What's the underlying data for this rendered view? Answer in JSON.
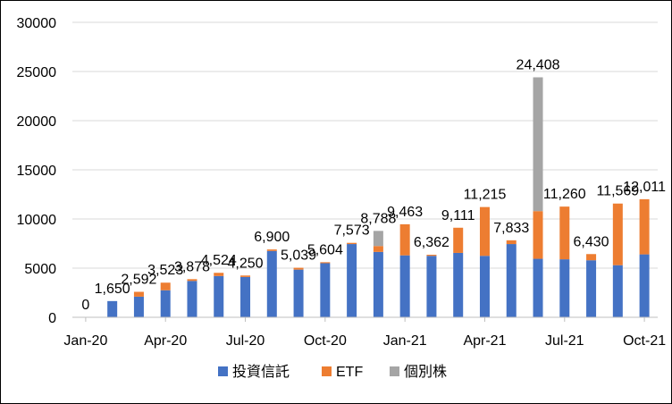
{
  "chart_data": {
    "type": "bar",
    "stacked": true,
    "title": "",
    "xlabel": "",
    "ylabel": "",
    "ylim": [
      0,
      30000
    ],
    "yticks": [
      0,
      5000,
      10000,
      15000,
      20000,
      25000,
      30000
    ],
    "ytick_labels": [
      "0",
      "5000",
      "10000",
      "15000",
      "20000",
      "25000",
      "30000"
    ],
    "grid": true,
    "legend_position": "bottom",
    "categories": [
      "Jan-20",
      "Feb-20",
      "Mar-20",
      "Apr-20",
      "May-20",
      "Jun-20",
      "Jul-20",
      "Aug-20",
      "Sep-20",
      "Oct-20",
      "Nov-20",
      "Dec-20",
      "Jan-21",
      "Feb-21",
      "Mar-21",
      "Apr-21",
      "May-21",
      "Jun-21",
      "Jul-21",
      "Aug-21",
      "Sep-21",
      "Oct-21"
    ],
    "x_tick_labels": [
      {
        "index": 0,
        "label": "Jan-20"
      },
      {
        "index": 3,
        "label": "Apr-20"
      },
      {
        "index": 6,
        "label": "Jul-20"
      },
      {
        "index": 9,
        "label": "Oct-20"
      },
      {
        "index": 12,
        "label": "Jan-21"
      },
      {
        "index": 15,
        "label": "Apr-21"
      },
      {
        "index": 18,
        "label": "Jul-21"
      },
      {
        "index": 21,
        "label": "Oct-21"
      }
    ],
    "series": [
      {
        "name": "投資信託",
        "color": "#4472c4",
        "values": [
          0,
          1650,
          2100,
          2750,
          3700,
          4200,
          4100,
          6750,
          4850,
          5500,
          7450,
          6650,
          6300,
          6250,
          6550,
          6250,
          7450,
          5950,
          5900,
          5800,
          5300,
          6400
        ]
      },
      {
        "name": "ETF",
        "color": "#ed7d31",
        "values": [
          0,
          0,
          492,
          773,
          178,
          324,
          150,
          150,
          189,
          104,
          123,
          600,
          3163,
          112,
          2561,
          4965,
          383,
          4850,
          5360,
          630,
          6269,
          5611
        ]
      },
      {
        "name": "個別株",
        "color": "#a5a5a5",
        "values": [
          0,
          0,
          0,
          0,
          0,
          0,
          0,
          0,
          0,
          0,
          0,
          1538,
          0,
          0,
          0,
          0,
          0,
          13608,
          0,
          0,
          0,
          0
        ]
      }
    ],
    "data_labels": [
      "0",
      "1,650",
      "2,592",
      "3,523",
      "3,878",
      "4,524",
      "4,250",
      "6,900",
      "5,039",
      "5,604",
      "7,573",
      "8,788",
      "9,463",
      "6,362",
      "9,111",
      "11,215",
      "7,833",
      "24,408",
      "11,260",
      "6,430",
      "11,569",
      "12,011"
    ]
  }
}
